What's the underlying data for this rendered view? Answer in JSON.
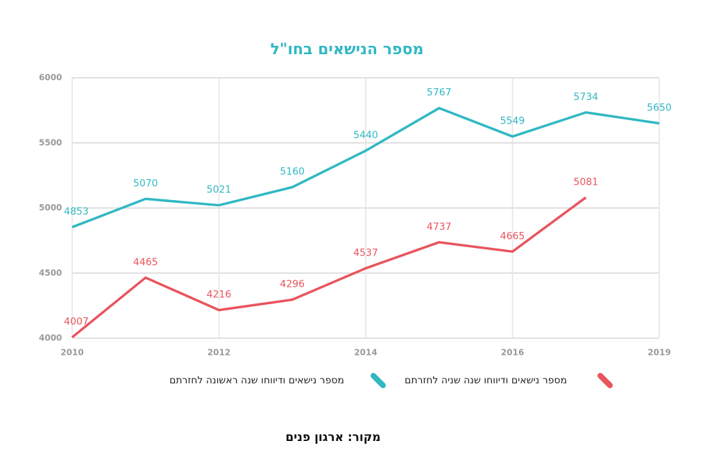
{
  "chart_data": {
    "type": "line",
    "title": "מספר הנישאים בחו\"ל",
    "categories": [
      "2010",
      null,
      "2012",
      null,
      "2014",
      null,
      "2016",
      null,
      "2019"
    ],
    "series": [
      {
        "name": "מספר נישאים ודיווחו שנה ראשונה לחזרתם",
        "color": "#30b8c3",
        "values": [
          4853,
          5070,
          5021,
          5160,
          5440,
          5767,
          5549,
          5734,
          5650
        ]
      },
      {
        "name": "מספר נישאים ודיווחו שנה שניה לחזרתם",
        "color": "#e9545d",
        "values": [
          4007,
          4465,
          4216,
          4296,
          4537,
          4737,
          4665,
          5081,
          null
        ]
      }
    ],
    "ylim": [
      4000,
      6000
    ],
    "yticks": [
      4000,
      4500,
      5000,
      5500,
      6000
    ],
    "grid": true,
    "source": "מקור: ארגון פנים"
  }
}
